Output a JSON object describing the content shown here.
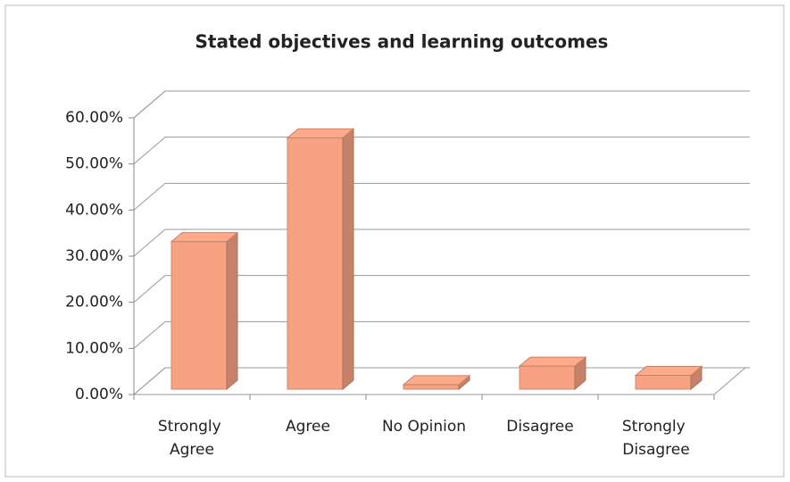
{
  "chart_data": {
    "type": "bar3d",
    "title": "Stated objectives and learning outcomes",
    "categories": [
      "Strongly Agree",
      "Agree",
      "No Opinion",
      "Disagree",
      "Strongly Disagree"
    ],
    "values": [
      32,
      54.5,
      1,
      5,
      3
    ],
    "color": "#f6a283",
    "ylim": [
      0,
      60
    ],
    "yticks": [
      {
        "value": 0,
        "label": "0.00%"
      },
      {
        "value": 10,
        "label": "10.00%"
      },
      {
        "value": 20,
        "label": "20.00%"
      },
      {
        "value": 30,
        "label": "30.00%"
      },
      {
        "value": 40,
        "label": "40.00%"
      },
      {
        "value": 50,
        "label": "50.00%"
      },
      {
        "value": 60,
        "label": "60.00%"
      }
    ],
    "grid": true
  }
}
